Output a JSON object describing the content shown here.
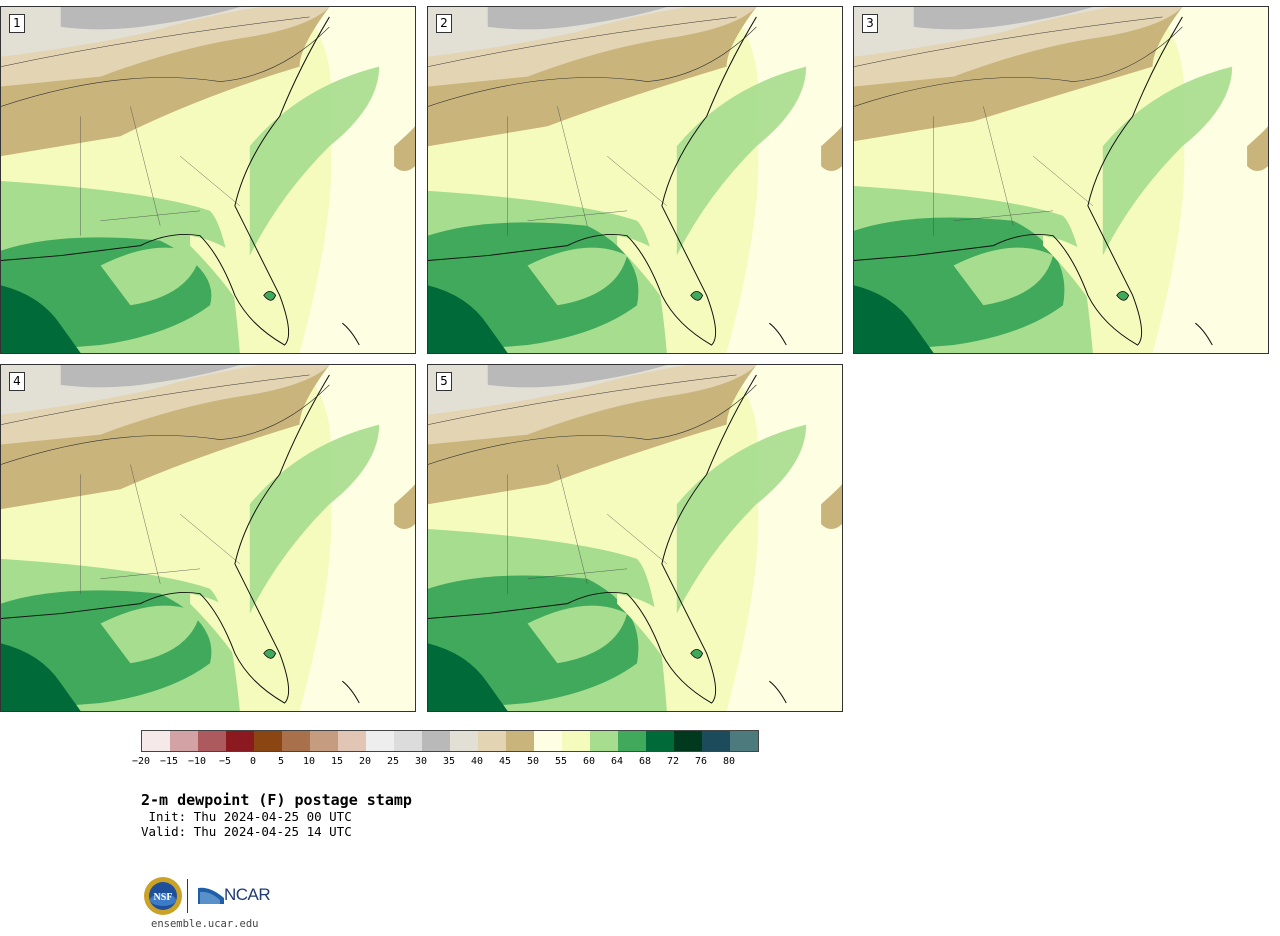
{
  "panels": [
    {
      "label": "1"
    },
    {
      "label": "2"
    },
    {
      "label": "3"
    },
    {
      "label": "4"
    },
    {
      "label": "5"
    }
  ],
  "colorbar": {
    "colors": [
      "#f5e9e9",
      "#d3a2a4",
      "#ad5a5e",
      "#8a1a1f",
      "#8b4513",
      "#a8704b",
      "#c59c80",
      "#e2c6b5",
      "#eeeeee",
      "#dcdcdc",
      "#b9b9b9",
      "#e2e0d5",
      "#e3d4b3",
      "#c9b57c",
      "#fefee5",
      "#f5fbbd",
      "#a6dd8e",
      "#40a95b",
      "#006a38",
      "#00391d",
      "#1c4c5b",
      "#4d7a7d"
    ],
    "ticks": [
      "−20",
      "−15",
      "−10",
      "−5",
      "0",
      "5",
      "10",
      "15",
      "20",
      "25",
      "30",
      "35",
      "40",
      "45",
      "50",
      "55",
      "60",
      "64",
      "68",
      "72",
      "76",
      "80"
    ]
  },
  "title": "2-m dewpoint (F) postage stamp",
  "init_line": " Init: Thu 2024-04-25 00 UTC",
  "valid_line": "Valid: Thu 2024-04-25 14 UTC",
  "logo": {
    "ncar_text": "NCAR",
    "nsf_text": "NSF"
  },
  "site_url": "ensemble.ucar.edu"
}
